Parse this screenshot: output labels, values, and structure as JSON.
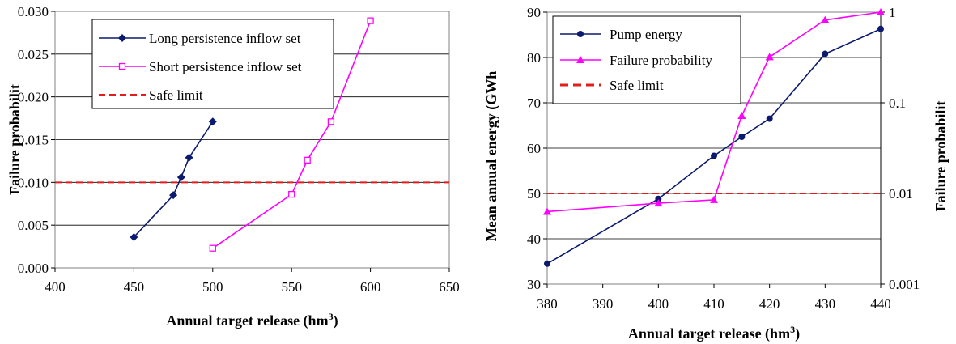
{
  "chart_data": [
    {
      "type": "line",
      "xlabel": "Annual target release (hm",
      "xlabel_sup": "3",
      "xlabel_suffix": ")",
      "ylabel": "Failure probabilit",
      "xlim": [
        400,
        650
      ],
      "ylim": [
        0,
        0.03
      ],
      "x_ticks": [
        "400",
        "450",
        "500",
        "550",
        "600",
        "650"
      ],
      "y_ticks": [
        "0.000",
        "0.005",
        "0.010",
        "0.015",
        "0.020",
        "0.025",
        "0.030"
      ],
      "grid": true,
      "legend_position": "top-left",
      "series": [
        {
          "name": "Long persistence inflow set",
          "color": "#0b1a6e",
          "marker": "diamond",
          "x": [
            450,
            475,
            480,
            485,
            500
          ],
          "y": [
            0.0036,
            0.0085,
            0.0106,
            0.0129,
            0.0171
          ]
        },
        {
          "name": "Short persistence inflow set",
          "color": "#ff00ff",
          "marker": "square-open",
          "x": [
            500,
            550,
            560,
            575,
            600
          ],
          "y": [
            0.0023,
            0.0086,
            0.0126,
            0.0171,
            0.0289
          ]
        },
        {
          "name": "Safe limit",
          "color": "#e31c1c",
          "style": "dashed",
          "value": 0.01
        }
      ]
    },
    {
      "type": "line",
      "xlabel": "Annual target release (hm",
      "xlabel_sup": "3",
      "xlabel_suffix": ")",
      "ylabel": "Mean annual energy (GWh",
      "y2label": "Failure probabilit",
      "xlim": [
        380,
        440
      ],
      "ylim": [
        30,
        90
      ],
      "y2lim": [
        0.001,
        1
      ],
      "y2scale": "log",
      "x_ticks": [
        "380",
        "390",
        "400",
        "410",
        "420",
        "430",
        "440"
      ],
      "y_ticks": [
        "30",
        "40",
        "50",
        "60",
        "70",
        "80",
        "90"
      ],
      "y2_ticks": [
        "0.001",
        "0.01",
        "0.1",
        "1"
      ],
      "grid": true,
      "legend_position": "top-left",
      "series": [
        {
          "name": "Pump energy",
          "color": "#0b1a6e",
          "marker": "circle",
          "axis": "left",
          "x": [
            380,
            400,
            410,
            415,
            420,
            430,
            440
          ],
          "y": [
            34.5,
            48.8,
            58.3,
            62.5,
            66.5,
            80.8,
            86.3
          ]
        },
        {
          "name": "Failure probability",
          "color": "#ff00ff",
          "marker": "triangle",
          "axis": "right",
          "x": [
            380,
            400,
            410,
            415,
            420,
            430,
            440
          ],
          "y": [
            0.0063,
            0.0078,
            0.0085,
            0.072,
            0.32,
            0.82,
            1.0
          ]
        },
        {
          "name": "Safe limit",
          "color": "#e31c1c",
          "style": "dashed",
          "axis": "right",
          "value": 0.01
        }
      ]
    }
  ]
}
